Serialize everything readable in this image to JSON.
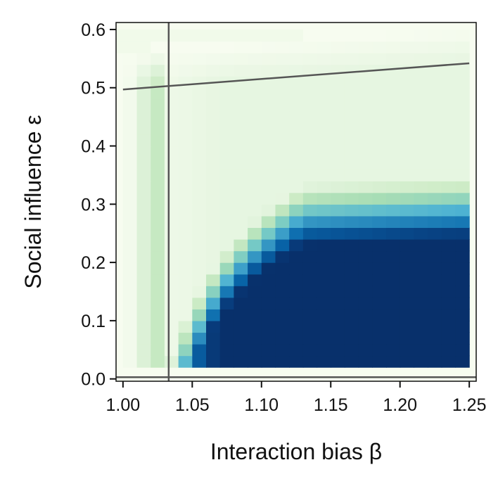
{
  "chart_data": {
    "type": "heatmap",
    "title": "",
    "xlabel": "Interaction bias β",
    "ylabel": "Social influence ε",
    "xlim": [
      0.995,
      1.255
    ],
    "ylim": [
      -0.004,
      0.612
    ],
    "x_ticks": [
      1.0,
      1.05,
      1.1,
      1.15,
      1.2,
      1.25
    ],
    "x_tick_labels": [
      "1.00",
      "1.05",
      "1.10",
      "1.15",
      "1.20",
      "1.25"
    ],
    "y_ticks": [
      0.0,
      0.1,
      0.2,
      0.3,
      0.4,
      0.5,
      0.6
    ],
    "y_tick_labels": [
      "0.0",
      "0.1",
      "0.2",
      "0.3",
      "0.4",
      "0.5",
      "0.6"
    ],
    "grid": false,
    "legend": "none",
    "heatmap": {
      "x_start": 0.995,
      "x_step": 0.01,
      "x_count": 26,
      "y_start": 0.01,
      "y_step": 0.02,
      "y_count": 30,
      "colormap": "GnBu",
      "value_range": [
        0,
        1
      ],
      "description": "Values near 0 (pale green) outside the region; near 1 (dark blue) inside the region to the right of the vertical boundary and below the curved upper boundary."
    },
    "reference_lines": {
      "vertical_x": 1.033,
      "horizontal_y": 0.003,
      "slanted": {
        "x": [
          1.0,
          1.25
        ],
        "y": [
          0.497,
          0.542
        ]
      }
    },
    "colors": {
      "line": "#555555",
      "axis": "#111111",
      "low": "#f7fcf0",
      "high": "#08306b"
    }
  }
}
